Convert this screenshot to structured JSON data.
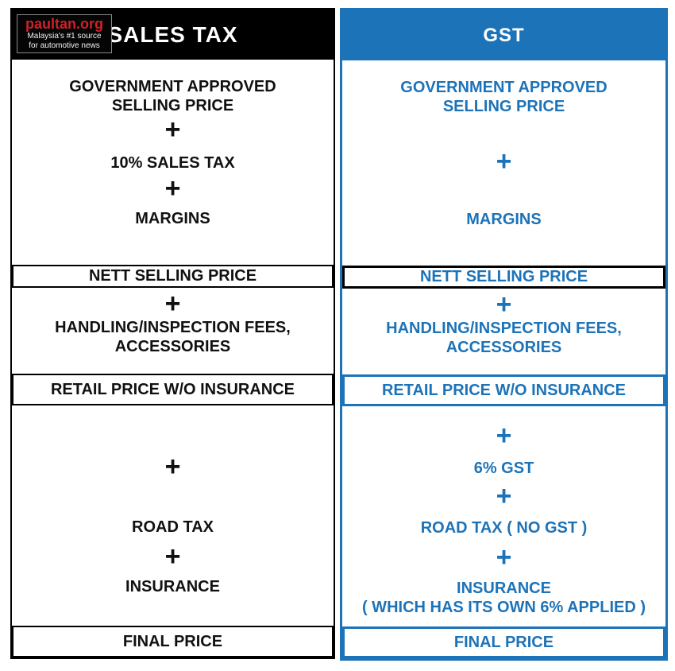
{
  "logo": {
    "title": "paultan.org",
    "tagline1": "Malaysia's #1 source",
    "tagline2": "for automotive news"
  },
  "colors": {
    "accent_blue": "#1d73b8",
    "black": "#000000",
    "logo_red": "#d12028",
    "background": "#ffffff"
  },
  "left": {
    "header": "SALES TAX",
    "plus": "+",
    "gov_price": "GOVERNMENT APPROVED\nSELLING PRICE",
    "sales_tax": "10% SALES TAX",
    "margins": "MARGINS",
    "nett": "NETT SELLING PRICE",
    "handling": "HANDLING/INSPECTION FEES,\nACCESSORIES",
    "retail": "RETAIL PRICE W/O INSURANCE",
    "road_tax": "ROAD TAX",
    "insurance": "INSURANCE",
    "final": "FINAL PRICE"
  },
  "right": {
    "header": "GST",
    "plus": "+",
    "gov_price": "GOVERNMENT APPROVED\nSELLING PRICE",
    "margins": "MARGINS",
    "nett": "NETT SELLING PRICE",
    "handling": "HANDLING/INSPECTION FEES,\nACCESSORIES",
    "retail": "RETAIL PRICE W/O INSURANCE",
    "gst": "6% GST",
    "road_tax": "ROAD TAX ( NO GST )",
    "insurance": "INSURANCE\n( WHICH HAS ITS OWN 6% APPLIED )",
    "final": "FINAL PRICE"
  }
}
